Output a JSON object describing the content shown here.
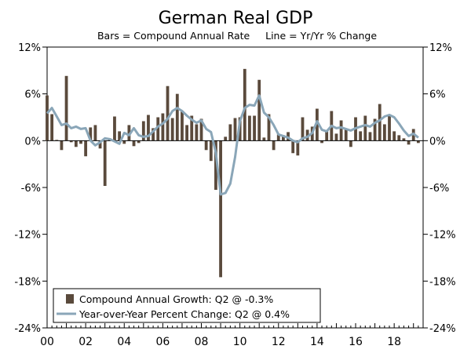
{
  "colors": {
    "bar": "#5a4a3c",
    "line": "#8aa6b8",
    "axis": "#000000",
    "background": "#ffffff"
  },
  "chart_data": {
    "type": "bar+line",
    "title": "German Real GDP",
    "subtitle": "Bars = Compound Annual Rate     Line = Yr/Yr % Change",
    "xlabel": "",
    "ylabel": "",
    "ylim": [
      -24,
      12
    ],
    "yticks": [
      12,
      6,
      0,
      -6,
      -12,
      -18,
      -24
    ],
    "ytick_labels": [
      "12%",
      "6%",
      "0%",
      "-6%",
      "-12%",
      "-18%",
      "-24%"
    ],
    "xlim": [
      2000.0,
      2019.5
    ],
    "xticks": [
      2000,
      2002,
      2004,
      2006,
      2008,
      2010,
      2012,
      2014,
      2016,
      2018
    ],
    "xtick_labels": [
      "00",
      "02",
      "04",
      "06",
      "08",
      "10",
      "12",
      "14",
      "16",
      "18"
    ],
    "grid": false,
    "legend_position": "bottom-left",
    "series": [
      {
        "name": "Compound Annual Growth: Q2 @ -0.3%",
        "type": "bar",
        "x": [
          2000.0,
          2000.25,
          2000.5,
          2000.75,
          2001.0,
          2001.25,
          2001.5,
          2001.75,
          2002.0,
          2002.25,
          2002.5,
          2002.75,
          2003.0,
          2003.25,
          2003.5,
          2003.75,
          2004.0,
          2004.25,
          2004.5,
          2004.75,
          2005.0,
          2005.25,
          2005.5,
          2005.75,
          2006.0,
          2006.25,
          2006.5,
          2006.75,
          2007.0,
          2007.25,
          2007.5,
          2007.75,
          2008.0,
          2008.25,
          2008.5,
          2008.75,
          2009.0,
          2009.25,
          2009.5,
          2009.75,
          2010.0,
          2010.25,
          2010.5,
          2010.75,
          2011.0,
          2011.25,
          2011.5,
          2011.75,
          2012.0,
          2012.25,
          2012.5,
          2012.75,
          2013.0,
          2013.25,
          2013.5,
          2013.75,
          2014.0,
          2014.25,
          2014.5,
          2014.75,
          2015.0,
          2015.25,
          2015.5,
          2015.75,
          2016.0,
          2016.25,
          2016.5,
          2016.75,
          2017.0,
          2017.25,
          2017.5,
          2017.75,
          2018.0,
          2018.25,
          2018.5,
          2018.75,
          2019.0,
          2019.25
        ],
        "values": [
          5.8,
          3.4,
          0.1,
          -1.2,
          8.3,
          -0.2,
          -0.8,
          -0.4,
          -2.0,
          1.7,
          2.0,
          -1.0,
          -5.8,
          0.3,
          3.1,
          1.2,
          -0.4,
          2.0,
          -0.7,
          -0.3,
          2.5,
          3.3,
          1.6,
          3.0,
          3.5,
          7.0,
          2.9,
          6.0,
          3.7,
          2.0,
          3.2,
          2.1,
          2.8,
          -1.2,
          -2.6,
          -6.3,
          -17.5,
          0.5,
          2.1,
          2.9,
          3.0,
          9.2,
          3.2,
          3.2,
          7.8,
          0.4,
          3.4,
          -1.2,
          0.8,
          0.7,
          1.1,
          -1.6,
          -1.9,
          3.0,
          1.4,
          1.8,
          4.1,
          -0.3,
          1.2,
          3.8,
          0.9,
          2.6,
          1.4,
          -0.8,
          3.0,
          1.2,
          3.2,
          1.1,
          2.8,
          4.7,
          2.1,
          3.3,
          1.2,
          0.7,
          0.3,
          -0.5,
          1.5,
          -0.3
        ]
      },
      {
        "name": "Year-over-Year Percent Change: Q2 @ 0.4%",
        "type": "line",
        "x": [
          2000.0,
          2000.25,
          2000.5,
          2000.75,
          2001.0,
          2001.25,
          2001.5,
          2001.75,
          2002.0,
          2002.25,
          2002.5,
          2002.75,
          2003.0,
          2003.25,
          2003.5,
          2003.75,
          2004.0,
          2004.25,
          2004.5,
          2004.75,
          2005.0,
          2005.25,
          2005.5,
          2005.75,
          2006.0,
          2006.25,
          2006.5,
          2006.75,
          2007.0,
          2007.25,
          2007.5,
          2007.75,
          2008.0,
          2008.25,
          2008.5,
          2008.75,
          2009.0,
          2009.25,
          2009.5,
          2009.75,
          2010.0,
          2010.25,
          2010.5,
          2010.75,
          2011.0,
          2011.25,
          2011.5,
          2011.75,
          2012.0,
          2012.25,
          2012.5,
          2012.75,
          2013.0,
          2013.25,
          2013.5,
          2013.75,
          2014.0,
          2014.25,
          2014.5,
          2014.75,
          2015.0,
          2015.25,
          2015.5,
          2015.75,
          2016.0,
          2016.25,
          2016.5,
          2016.75,
          2017.0,
          2017.25,
          2017.5,
          2017.75,
          2018.0,
          2018.25,
          2018.5,
          2018.75,
          2019.0,
          2019.25
        ],
        "values": [
          3.5,
          4.2,
          3.1,
          2.0,
          2.2,
          1.6,
          1.8,
          1.5,
          1.6,
          0.0,
          -0.6,
          -0.2,
          0.3,
          0.2,
          -0.1,
          -0.4,
          1.0,
          0.7,
          1.6,
          0.7,
          0.5,
          0.6,
          1.2,
          1.8,
          2.2,
          2.8,
          3.8,
          4.2,
          3.8,
          3.2,
          2.7,
          2.3,
          2.6,
          1.5,
          1.1,
          -1.5,
          -6.9,
          -6.7,
          -5.5,
          -2.1,
          2.5,
          4.2,
          4.6,
          4.5,
          5.8,
          3.6,
          3.0,
          2.0,
          0.8,
          0.6,
          0.4,
          0.0,
          -0.2,
          0.3,
          0.5,
          1.0,
          2.5,
          1.4,
          1.2,
          1.9,
          1.6,
          1.7,
          1.5,
          1.3,
          1.6,
          1.8,
          2.0,
          1.8,
          2.3,
          2.6,
          3.1,
          3.3,
          3.0,
          2.2,
          1.3,
          0.6,
          0.9,
          0.4
        ]
      }
    ]
  }
}
